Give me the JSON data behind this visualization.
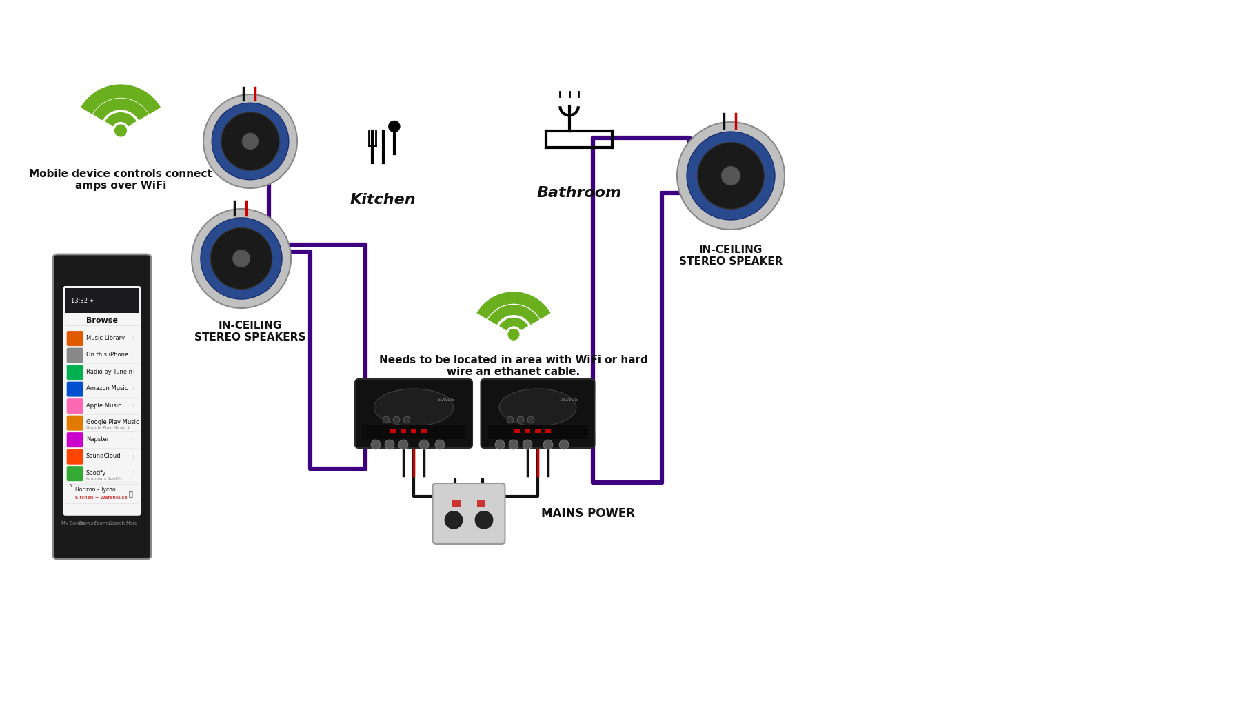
{
  "bg_color": "#ffffff",
  "wifi_color": "#6ab01e",
  "wire_purple": "#3d0080",
  "wire_black": "#111111",
  "wire_red": "#cc0000",
  "text_color": "#111111",
  "labels": {
    "wifi_top_left": "Mobile device controls connect\namps over WiFi",
    "speakers_left": "IN-CEILING\nSTEREO SPEAKERS",
    "kitchen": "Kitchen",
    "bathroom": "Bathroom",
    "speaker_right": "IN-CEILING\nSTEREO SPEAKER",
    "wifi_center": "Needs to be located in area with WiFi or hard\nwire an ethanet cable.",
    "mains_power": "MAINS POWER"
  }
}
